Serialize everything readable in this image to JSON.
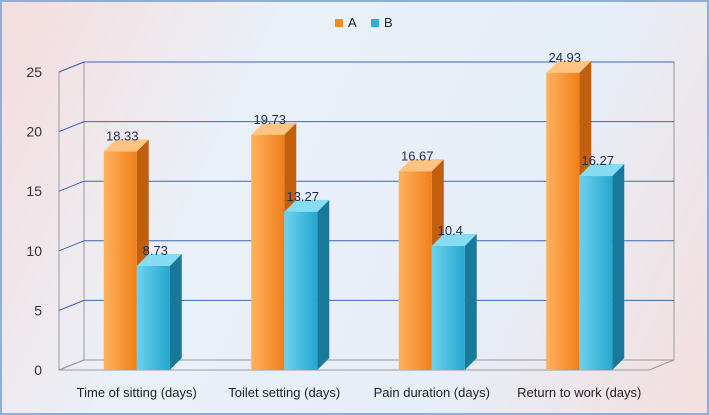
{
  "chart_data": {
    "type": "bar",
    "categories": [
      "Time of sitting (days)",
      "Toilet setting (days)",
      "Pain duration (days)",
      "Return to work (days)"
    ],
    "series": [
      {
        "name": "A",
        "values": [
          18.33,
          19.73,
          16.67,
          24.93
        ],
        "color": "#f58a1f"
      },
      {
        "name": "B",
        "values": [
          8.73,
          13.27,
          10.4,
          16.27
        ],
        "color": "#2fb1d6"
      }
    ],
    "data_labels": {
      "A": [
        "18.33",
        "19.73",
        "16.67",
        "24.93"
      ],
      "B": [
        "8.73",
        "13.27",
        "10.4",
        "16.27"
      ]
    },
    "y_ticks": [
      "0",
      "5",
      "10",
      "15",
      "20",
      "25"
    ],
    "ylim": [
      0,
      25
    ],
    "grid": true,
    "legend": "top-center",
    "style": "3d-column"
  }
}
